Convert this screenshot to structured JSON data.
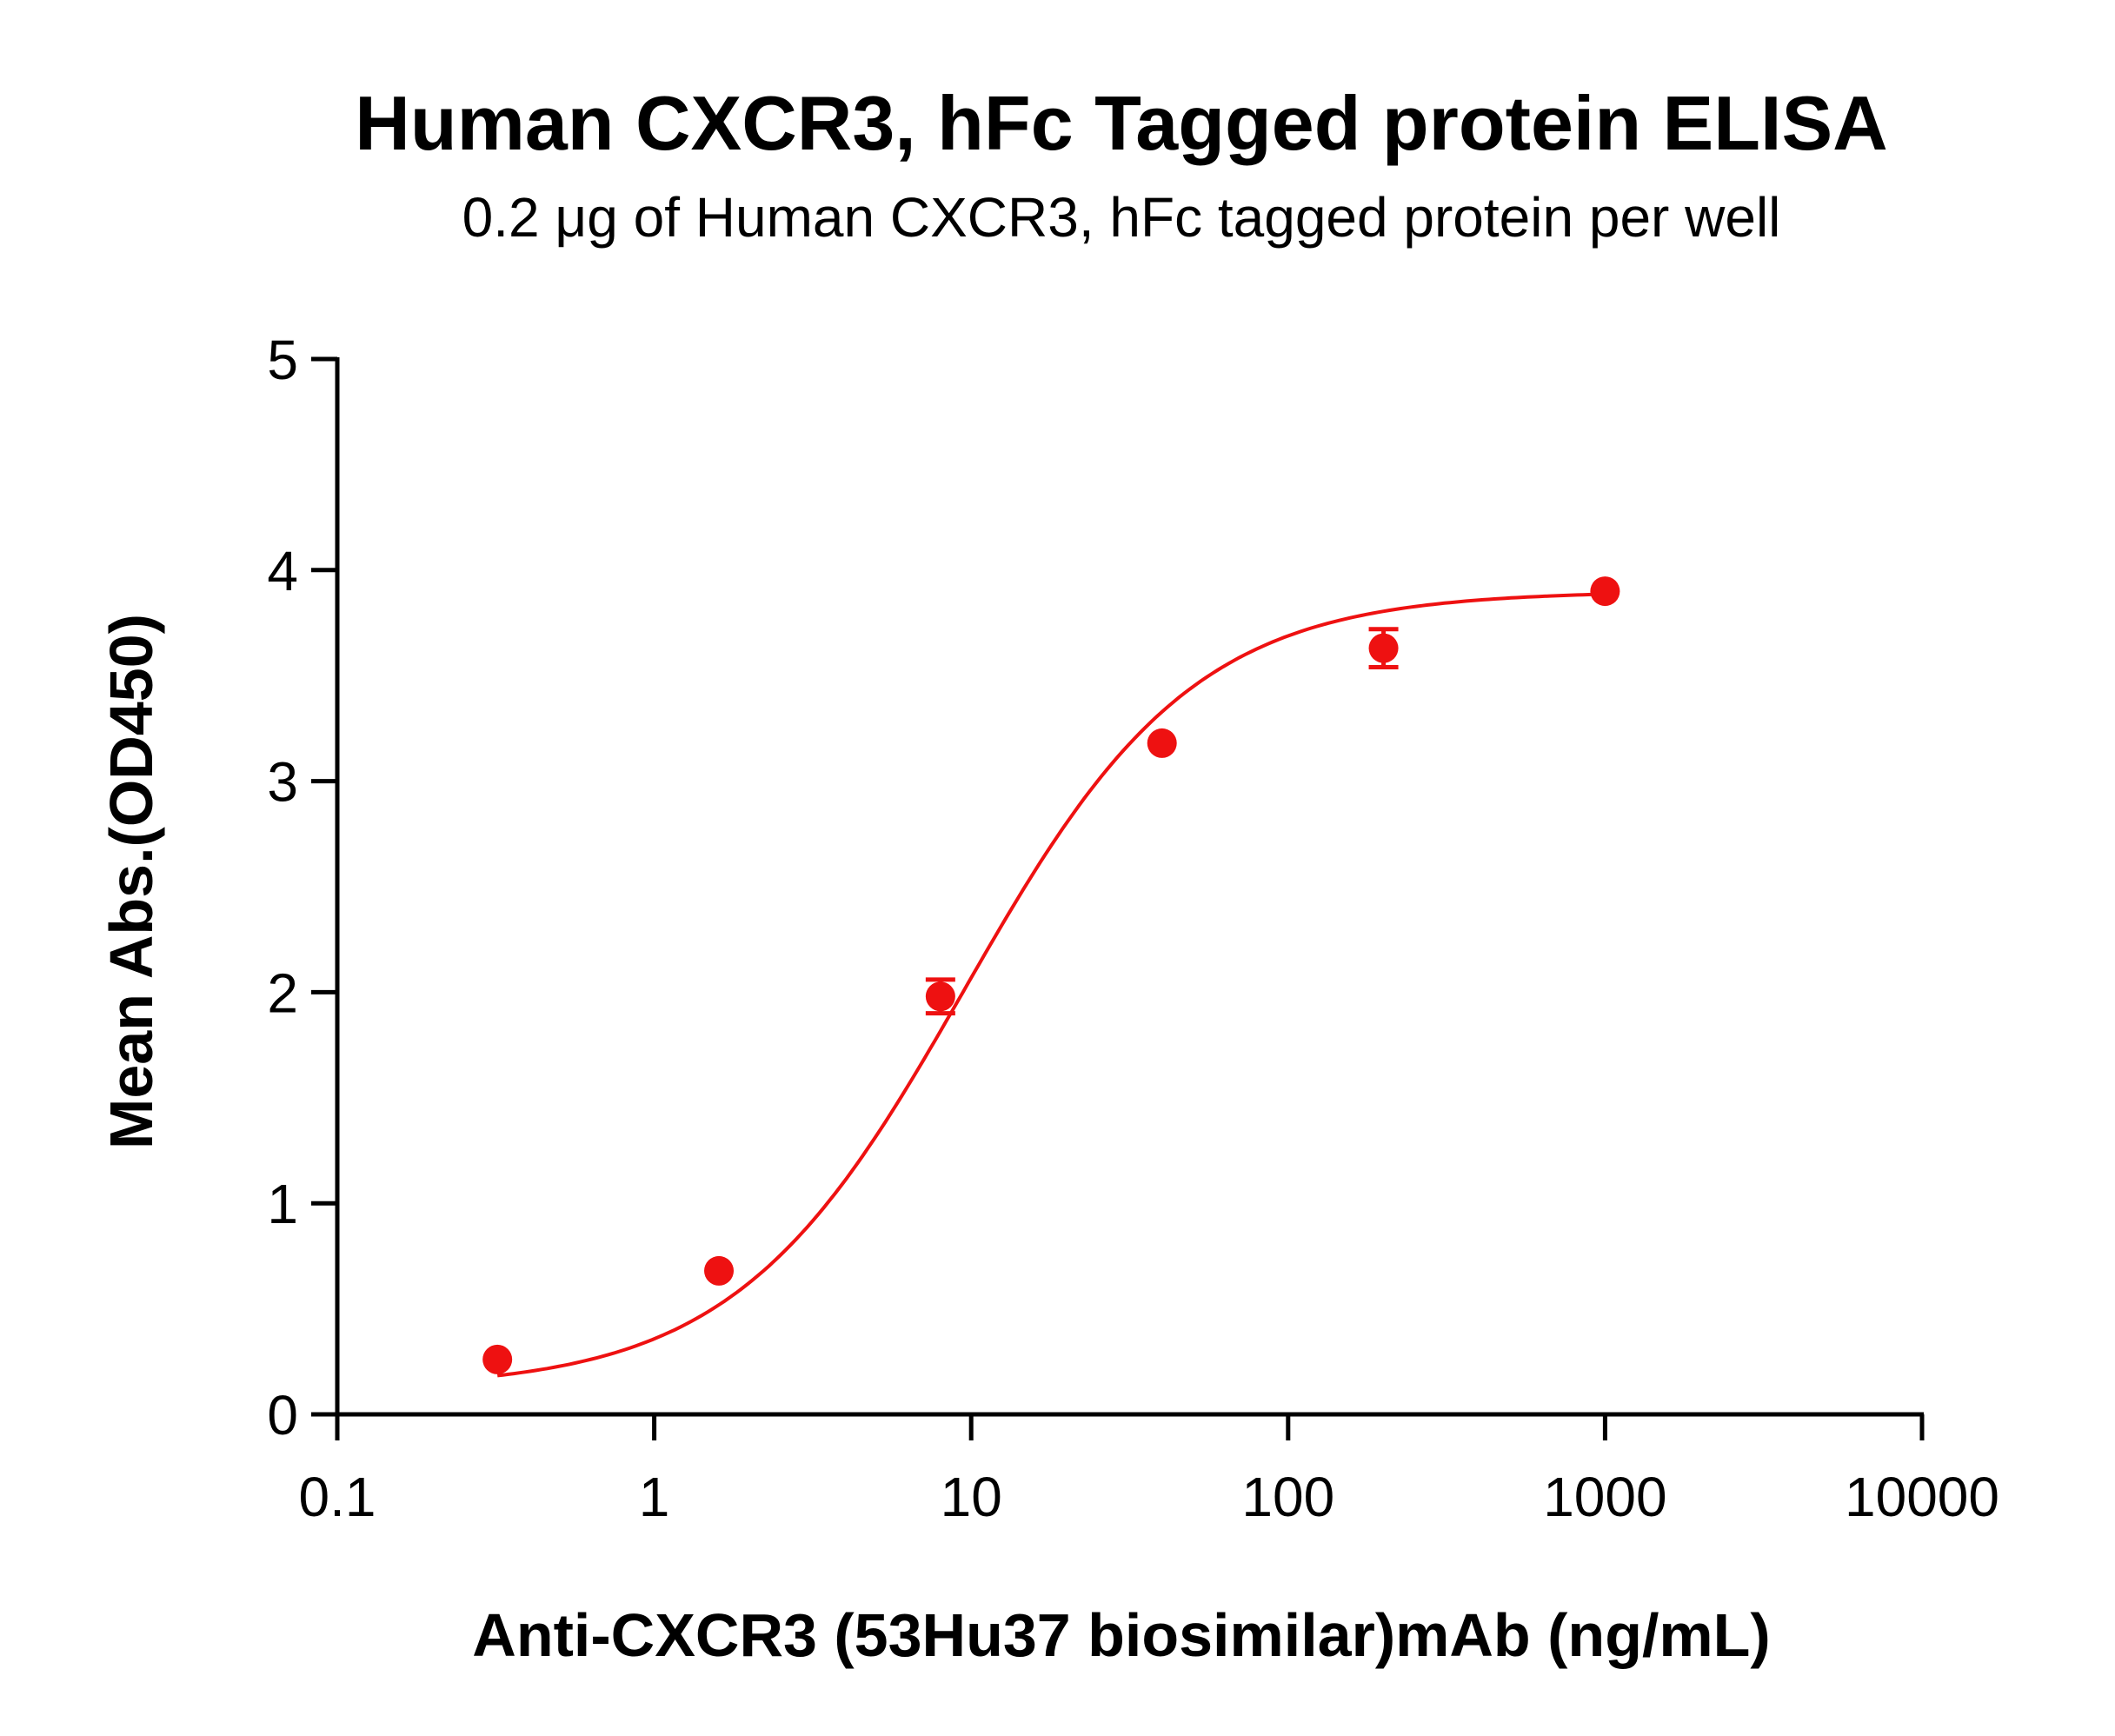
{
  "chart_data": {
    "type": "scatter",
    "title": "Human CXCR3, hFc Tagged protein ELISA",
    "subtitle": "0.2 μg of Human CXCR3, hFc tagged protein per well",
    "xlabel": "Anti-CXCR3 (53Hu37 biosimilar)mAb (ng/mL)",
    "ylabel": "Mean Abs.(OD450)",
    "x_scale": "log",
    "xlim": [
      0.1,
      10000
    ],
    "ylim": [
      0,
      5
    ],
    "x_ticks": [
      0.1,
      1,
      10,
      100,
      1000,
      10000
    ],
    "x_tick_labels": [
      "0.1",
      "1",
      "10",
      "100",
      "1000",
      "10000"
    ],
    "y_ticks": [
      0,
      1,
      2,
      3,
      4,
      5
    ],
    "y_tick_labels": [
      "0",
      "1",
      "2",
      "3",
      "4",
      "5"
    ],
    "grid": false,
    "color": "#ee1111",
    "series": [
      {
        "points": [
          {
            "x": 0.32,
            "y": 0.26,
            "err": 0.0
          },
          {
            "x": 1.6,
            "y": 0.68,
            "err": 0.0
          },
          {
            "x": 8.0,
            "y": 1.98,
            "err": 0.08
          },
          {
            "x": 40,
            "y": 3.18,
            "err": 0.0
          },
          {
            "x": 200,
            "y": 3.63,
            "err": 0.09
          },
          {
            "x": 1000,
            "y": 3.9,
            "err": 0.0
          }
        ],
        "fit": {
          "model": "4PL",
          "bottom": 0.12,
          "top": 3.9,
          "ec50": 9.5,
          "hill": 1.2
        }
      }
    ]
  }
}
